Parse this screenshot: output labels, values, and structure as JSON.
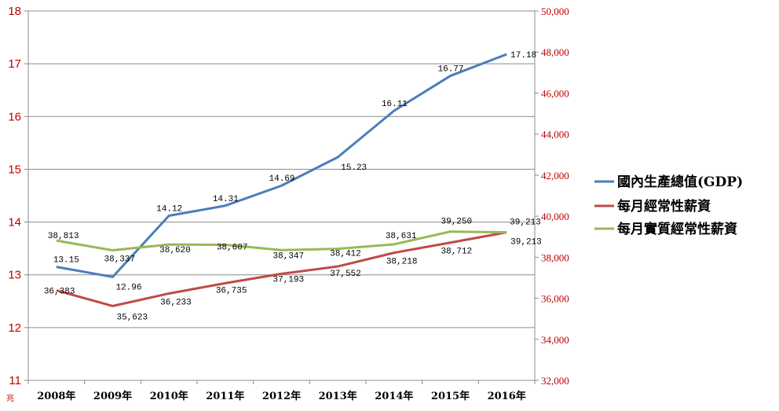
{
  "chart_data": {
    "type": "line",
    "categories": [
      "2008年",
      "2009年",
      "2010年",
      "2011年",
      "2012年",
      "2013年",
      "2014年",
      "2015年",
      "2016年"
    ],
    "left_axis": {
      "ylim": [
        11,
        18
      ],
      "ticks": [
        11,
        12,
        13,
        14,
        15,
        16,
        17,
        18
      ],
      "unit": "兆"
    },
    "right_axis": {
      "ylim": [
        32000,
        50000
      ],
      "ticks": [
        32000,
        34000,
        36000,
        38000,
        40000,
        42000,
        44000,
        46000,
        48000,
        50000
      ],
      "tick_labels": [
        "32,000",
        "34,000",
        "36,000",
        "38,000",
        "40,000",
        "42,000",
        "44,000",
        "46,000",
        "48,000",
        "50,000"
      ]
    },
    "grid": true,
    "legend_position": "right",
    "series": [
      {
        "name": "國內生產總值(GDP)",
        "axis": "left",
        "color": "#4a7ebb",
        "values": [
          13.15,
          12.96,
          14.12,
          14.31,
          14.69,
          15.23,
          16.11,
          16.77,
          17.18
        ],
        "labels": [
          "13.15",
          "12.96",
          "14.12",
          "14.31",
          "14.69",
          "15.23",
          "16.11",
          "16.77",
          "17.18"
        ]
      },
      {
        "name": "每月經常性薪資",
        "axis": "right",
        "color": "#be4b48",
        "values": [
          36383,
          35623,
          36233,
          36735,
          37193,
          37552,
          38218,
          38712,
          39213
        ],
        "labels": [
          "36,383",
          "35,623",
          "36,233",
          "36,735",
          "37,193",
          "37,552",
          "38,218",
          "38,712",
          "39,213"
        ]
      },
      {
        "name": "每月實質經常性薪資",
        "axis": "right",
        "color": "#98b954",
        "values": [
          38813,
          38337,
          38620,
          38607,
          38347,
          38412,
          38631,
          39250,
          39213
        ],
        "labels": [
          "38,813",
          "38,337",
          "38,620",
          "38,607",
          "38,347",
          "38,412",
          "38,631",
          "39,250",
          "39,213"
        ]
      }
    ]
  }
}
